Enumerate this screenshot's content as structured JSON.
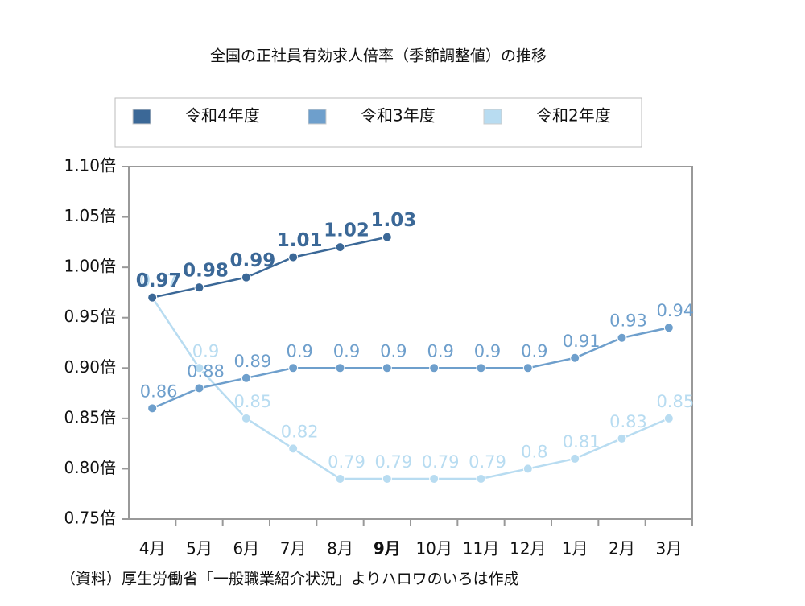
{
  "chart_data": {
    "type": "line",
    "title": "全国の正社員有効求人倍率（季節調整値）の推移",
    "categories": [
      "4月",
      "5月",
      "6月",
      "7月",
      "8月",
      "9月",
      "10月",
      "11月",
      "12月",
      "1月",
      "2月",
      "3月"
    ],
    "bold_categories": [
      5
    ],
    "series": [
      {
        "name": "令和4年度",
        "color": "#3b6897",
        "label_bold": true,
        "values": [
          0.97,
          0.98,
          0.99,
          1.01,
          1.02,
          1.03,
          null,
          null,
          null,
          null,
          null,
          null
        ]
      },
      {
        "name": "令和3年度",
        "color": "#6e9fcc",
        "label_bold": false,
        "values": [
          0.86,
          0.88,
          0.89,
          0.9,
          0.9,
          0.9,
          0.9,
          0.9,
          0.9,
          0.91,
          0.93,
          0.94
        ]
      },
      {
        "name": "令和2年度",
        "color": "#b8dcf1",
        "label_bold": false,
        "values": [
          0.97,
          0.9,
          0.85,
          0.82,
          0.79,
          0.79,
          0.79,
          0.79,
          0.8,
          0.81,
          0.83,
          0.85
        ]
      }
    ],
    "ylim": [
      0.75,
      1.1
    ],
    "yticks": [
      {
        "value": 0.75,
        "label": "0.75倍"
      },
      {
        "value": 0.8,
        "label": "0.80倍"
      },
      {
        "value": 0.85,
        "label": "0.85倍"
      },
      {
        "value": 0.9,
        "label": "0.90倍"
      },
      {
        "value": 0.95,
        "label": "0.95倍"
      },
      {
        "value": 1.0,
        "label": "1.00倍"
      },
      {
        "value": 1.05,
        "label": "1.05倍"
      },
      {
        "value": 1.1,
        "label": "1.10倍"
      }
    ],
    "grid": false,
    "legend": "top",
    "source": "（資料）厚生労働省「一般職業紹介状況」よりハロワのいろは作成"
  }
}
